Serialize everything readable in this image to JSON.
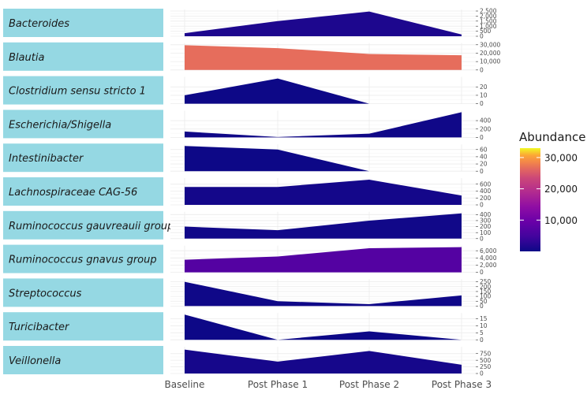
{
  "chart_data": {
    "type": "area",
    "x": [
      "Baseline",
      "Post Phase 1",
      "Post Phase 2",
      "Post Phase 3"
    ],
    "legend": {
      "title": "Abundance",
      "position": "right",
      "colorscale": "plasma",
      "range": [
        0,
        33000
      ],
      "ticks": [
        "10,000",
        "20,000",
        "30,000"
      ],
      "tick_values": [
        10000,
        20000,
        30000
      ]
    },
    "panels": [
      {
        "name": "Bacteroides",
        "values": [
          300,
          1500,
          2450,
          180
        ],
        "ymax": 2500,
        "ticks": [
          0,
          500,
          1000,
          1500,
          2000,
          2500
        ],
        "tick_labels": [
          "0",
          "500",
          "1,000",
          "1,500",
          "2,000",
          "2,500"
        ]
      },
      {
        "name": "Blautia",
        "values": [
          29500,
          26000,
          19000,
          17500
        ],
        "ymax": 30000,
        "ticks": [
          0,
          10000,
          20000,
          30000
        ],
        "tick_labels": [
          "0",
          "10,000",
          "20,000",
          "30,000"
        ]
      },
      {
        "name": "Clostridium sensu stricto 1",
        "values": [
          10,
          30,
          0,
          0
        ],
        "ymax": 30,
        "ticks": [
          0,
          10,
          20
        ],
        "tick_labels": [
          "0",
          "10",
          "20"
        ]
      },
      {
        "name": "Escherichia/Shigella",
        "values": [
          140,
          10,
          90,
          600
        ],
        "ymax": 600,
        "ticks": [
          0,
          200,
          400
        ],
        "tick_labels": [
          "0",
          "200",
          "400"
        ]
      },
      {
        "name": "Intestinibacter",
        "values": [
          70,
          60,
          0,
          0
        ],
        "ymax": 70,
        "ticks": [
          0,
          20,
          40,
          60
        ],
        "tick_labels": [
          "0",
          "20",
          "40",
          "60"
        ]
      },
      {
        "name": "Lachnospiraceae CAG-56",
        "values": [
          520,
          520,
          730,
          270
        ],
        "ymax": 730,
        "ticks": [
          0,
          200,
          400,
          600
        ],
        "tick_labels": [
          "0",
          "200",
          "400",
          "600"
        ]
      },
      {
        "name": "Ruminococcus gauvreauii group",
        "values": [
          200,
          140,
          300,
          420
        ],
        "ymax": 420,
        "ticks": [
          0,
          100,
          200,
          300,
          400
        ],
        "tick_labels": [
          "0",
          "100",
          "200",
          "300",
          "400"
        ]
      },
      {
        "name": "Ruminococcus gnavus group",
        "values": [
          3500,
          4400,
          6700,
          7000
        ],
        "ymax": 7000,
        "ticks": [
          0,
          2000,
          4000,
          6000
        ],
        "tick_labels": [
          "0",
          "2,000",
          "4,000",
          "6,000"
        ]
      },
      {
        "name": "Streptococcus",
        "values": [
          250,
          50,
          20,
          110
        ],
        "ymax": 260,
        "ticks": [
          0,
          50,
          100,
          150,
          200,
          250
        ],
        "tick_labels": [
          "0",
          "50",
          "100",
          "150",
          "200",
          "250"
        ]
      },
      {
        "name": "Turicibacter",
        "values": [
          18,
          0,
          6,
          0
        ],
        "ymax": 18,
        "ticks": [
          0,
          5,
          10,
          15
        ],
        "tick_labels": [
          "0",
          "5",
          "10",
          "15"
        ]
      },
      {
        "name": "Veillonella",
        "values": [
          900,
          450,
          850,
          330
        ],
        "ymax": 950,
        "ticks": [
          0,
          250,
          500,
          750
        ],
        "tick_labels": [
          "0",
          "250",
          "500",
          "750"
        ]
      }
    ]
  }
}
